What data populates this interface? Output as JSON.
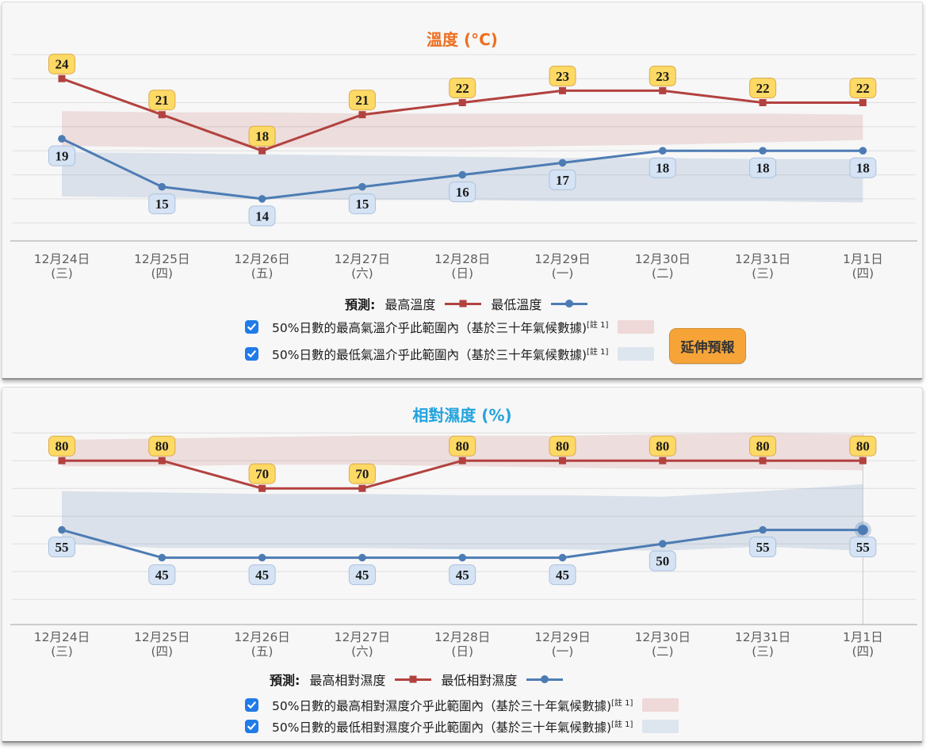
{
  "colors": {
    "temp_title": "#ee6e1f",
    "rh_title": "#23a3dd",
    "max_line": "#b2423f",
    "min_line": "#4d7cb4",
    "max_band": "rgba(184,90,87,0.16)",
    "min_band": "rgba(90,125,180,0.18)",
    "badge_yellow_bg": "#fdd965",
    "badge_yellow_border": "#dcab48",
    "badge_blue_bg": "#d5e3f4",
    "badge_blue_border": "#abc1dd",
    "grid": "#dedede",
    "axis": "#b3b3b3",
    "axis_label": "#5e5e5e",
    "hover_line": "#c8c8c8",
    "button_bg": "#f6a438",
    "checkbox_bg": "#217be8"
  },
  "panels": [
    {
      "title": "溫度 (°C)",
      "title_color": "#ee6e1f",
      "legend": {
        "prefix": "預測:",
        "series": [
          {
            "label": "最高溫度",
            "color": "#b2423f",
            "marker": "square"
          },
          {
            "label": "最低溫度",
            "color": "#4d7cb4",
            "marker": "circle"
          }
        ]
      },
      "checkboxes": [
        {
          "checked": true,
          "label": "50%日數的最高氣溫介乎此範圍內（基於三十年氣候數據)",
          "note": "[註 1]",
          "swatch": "#eed9d8"
        },
        {
          "checked": true,
          "label": "50%日數的最低氣溫介乎此範圍內（基於三十年氣候數據)",
          "note": "[註 1]",
          "swatch": "#dde5ee"
        }
      ],
      "button_label": "延伸預報"
    },
    {
      "title": "相對濕度 (%)",
      "title_color": "#23a3dd",
      "legend": {
        "prefix": "預測:",
        "series": [
          {
            "label": "最高相對濕度",
            "color": "#b2423f",
            "marker": "square"
          },
          {
            "label": "最低相對濕度",
            "color": "#4d7cb4",
            "marker": "circle"
          }
        ]
      },
      "checkboxes": [
        {
          "checked": true,
          "label": "50%日數的最高相對濕度介乎此範圍內（基於三十年氣候數據)",
          "note": "[註 1]",
          "swatch": "#eed9d8"
        },
        {
          "checked": true,
          "label": "50%日數的最低相對濕度介乎此範圍內（基於三十年氣候數據)",
          "note": "[註 1]",
          "swatch": "#dde5ee"
        }
      ]
    }
  ],
  "chart_data": [
    {
      "type": "line",
      "title": "溫度 (°C)",
      "ylabel": "°C",
      "ylim": [
        10.5,
        26.5
      ],
      "grid_values": [
        26,
        24,
        22,
        20,
        18,
        16,
        14,
        12
      ],
      "categories": [
        "12月24日 (三)",
        "12月25日 (四)",
        "12月26日 (五)",
        "12月27日 (六)",
        "12月28日 (日)",
        "12月29日 (一)",
        "12月30日 (二)",
        "12月31日 (三)",
        "1月1日 (四)"
      ],
      "x_labels": [
        [
          "12月24日",
          "(三)"
        ],
        [
          "12月25日",
          "(四)"
        ],
        [
          "12月26日",
          "(五)"
        ],
        [
          "12月27日",
          "(六)"
        ],
        [
          "12月28日",
          "(日)"
        ],
        [
          "12月29日",
          "(一)"
        ],
        [
          "12月30日",
          "(二)"
        ],
        [
          "12月31日",
          "(三)"
        ],
        [
          "1月1日",
          "(四)"
        ]
      ],
      "series": [
        {
          "name": "最高溫度",
          "color": "#b2423f",
          "marker": "square",
          "badge": "yellow",
          "values": [
            24,
            21,
            18,
            21,
            22,
            23,
            23,
            22,
            22
          ]
        },
        {
          "name": "最低溫度",
          "color": "#4d7cb4",
          "marker": "circle",
          "badge": "blue",
          "values": [
            19,
            15,
            14,
            15,
            16,
            17,
            18,
            18,
            18
          ]
        }
      ],
      "bands": [
        {
          "name": "50%日數的最高氣溫範圍（基於三十年氣候數據）",
          "color": "rgba(184,90,87,0.16)",
          "high": [
            21.3,
            21.2,
            21.2,
            21.1,
            21.1,
            21.1,
            21.1,
            21.1,
            21.0
          ],
          "low": [
            18.4,
            18.3,
            18.3,
            18.3,
            18.3,
            18.4,
            18.5,
            18.7,
            18.9
          ]
        },
        {
          "name": "50%日數的最低氣溫範圍（基於三十年氣候數據）",
          "color": "rgba(90,125,180,0.18)",
          "high": [
            17.9,
            17.8,
            17.7,
            17.6,
            17.5,
            17.4,
            17.4,
            17.3,
            17.3
          ],
          "low": [
            14.2,
            14.1,
            14.0,
            13.9,
            13.9,
            13.8,
            13.8,
            13.8,
            13.7
          ]
        }
      ],
      "hover": null
    },
    {
      "type": "line",
      "title": "相對濕度 (%)",
      "ylabel": "%",
      "ylim": [
        20.9,
        92
      ],
      "grid_values": [
        90,
        80,
        70,
        60,
        50,
        40,
        30
      ],
      "categories": [
        "12月24日 (三)",
        "12月25日 (四)",
        "12月26日 (五)",
        "12月27日 (六)",
        "12月28日 (日)",
        "12月29日 (一)",
        "12月30日 (二)",
        "12月31日 (三)",
        "1月1日 (四)"
      ],
      "x_labels": [
        [
          "12月24日",
          "(三)"
        ],
        [
          "12月25日",
          "(四)"
        ],
        [
          "12月26日",
          "(五)"
        ],
        [
          "12月27日",
          "(六)"
        ],
        [
          "12月28日",
          "(日)"
        ],
        [
          "12月29日",
          "(一)"
        ],
        [
          "12月30日",
          "(二)"
        ],
        [
          "12月31日",
          "(三)"
        ],
        [
          "1月1日",
          "(四)"
        ]
      ],
      "series": [
        {
          "name": "最高相對濕度",
          "color": "#b2423f",
          "marker": "square",
          "badge": "yellow",
          "values": [
            80,
            80,
            70,
            70,
            80,
            80,
            80,
            80,
            80
          ]
        },
        {
          "name": "最低相對濕度",
          "color": "#4d7cb4",
          "marker": "circle",
          "badge": "blue",
          "values": [
            55,
            45,
            45,
            45,
            45,
            45,
            50,
            55,
            55
          ]
        }
      ],
      "bands": [
        {
          "name": "50%日數的最高相對濕度範圍（基於三十年氣候數據）",
          "color": "rgba(184,90,87,0.16)",
          "high": [
            87.5,
            88.0,
            88.5,
            89.0,
            89.0,
            89.0,
            89.5,
            90.0,
            89.5
          ],
          "low": [
            78.0,
            78.0,
            78.5,
            78.5,
            78.0,
            77.5,
            77.0,
            77.0,
            76.5
          ]
        },
        {
          "name": "50%日數的最低相對濕度範圍（基於三十年氣候數據）",
          "color": "rgba(90,125,180,0.18)",
          "high": [
            69.0,
            68.5,
            68.0,
            68.0,
            67.5,
            67.5,
            67.0,
            69.0,
            71.5
          ],
          "low": [
            50.0,
            48.5,
            48.5,
            48.5,
            48.0,
            48.0,
            47.5,
            49.0,
            47.5
          ]
        }
      ],
      "hover": {
        "series": 1,
        "index": 8
      }
    }
  ]
}
